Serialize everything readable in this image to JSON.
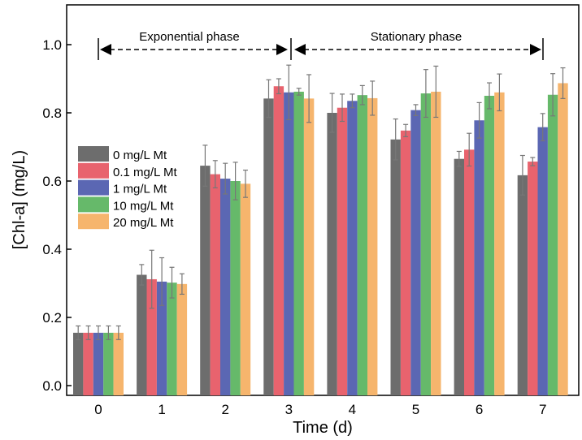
{
  "chart_data": {
    "type": "bar",
    "xlabel": "Time (d)",
    "ylabel": "[Chl-a] (mg/L)",
    "ylim": [
      0,
      1.05
    ],
    "yticks": [
      "0.0",
      "0.2",
      "0.4",
      "0.6",
      "0.8",
      "1.0"
    ],
    "categories": [
      "0",
      "1",
      "2",
      "3",
      "4",
      "5",
      "6",
      "7"
    ],
    "legend_placement": "center-left",
    "grid": false,
    "series": [
      {
        "name": "0 mg/L Mt",
        "color": "#6d6d6d",
        "values": [
          0.155,
          0.325,
          0.645,
          0.842,
          0.8,
          0.722,
          0.665,
          0.617
        ],
        "errors": [
          0.02,
          0.03,
          0.06,
          0.055,
          0.057,
          0.06,
          0.022,
          0.058
        ]
      },
      {
        "name": "0.1 mg/L Mt",
        "color": "#e8636e",
        "values": [
          0.155,
          0.312,
          0.62,
          0.878,
          0.815,
          0.748,
          0.692,
          0.657
        ],
        "errors": [
          0.02,
          0.085,
          0.04,
          0.022,
          0.04,
          0.018,
          0.048,
          0.012
        ]
      },
      {
        "name": "1 mg/L Mt",
        "color": "#5b67b3",
        "values": [
          0.155,
          0.305,
          0.607,
          0.86,
          0.835,
          0.808,
          0.778,
          0.758
        ],
        "errors": [
          0.02,
          0.07,
          0.045,
          0.08,
          0.02,
          0.016,
          0.052,
          0.04
        ]
      },
      {
        "name": "10 mg/L Mt",
        "color": "#66b96a",
        "values": [
          0.155,
          0.302,
          0.6,
          0.862,
          0.852,
          0.857,
          0.85,
          0.853
        ],
        "errors": [
          0.02,
          0.045,
          0.055,
          0.01,
          0.028,
          0.07,
          0.038,
          0.062
        ]
      },
      {
        "name": "20 mg/L Mt",
        "color": "#f6b56d",
        "values": [
          0.155,
          0.298,
          0.592,
          0.842,
          0.843,
          0.862,
          0.86,
          0.887
        ],
        "errors": [
          0.02,
          0.03,
          0.04,
          0.07,
          0.05,
          0.075,
          0.054,
          0.045
        ]
      }
    ],
    "annotations": [
      {
        "text": "Exponential phase",
        "from": "0",
        "to": "3"
      },
      {
        "text": "Stationary phase",
        "from": "3",
        "to": "7"
      }
    ]
  }
}
